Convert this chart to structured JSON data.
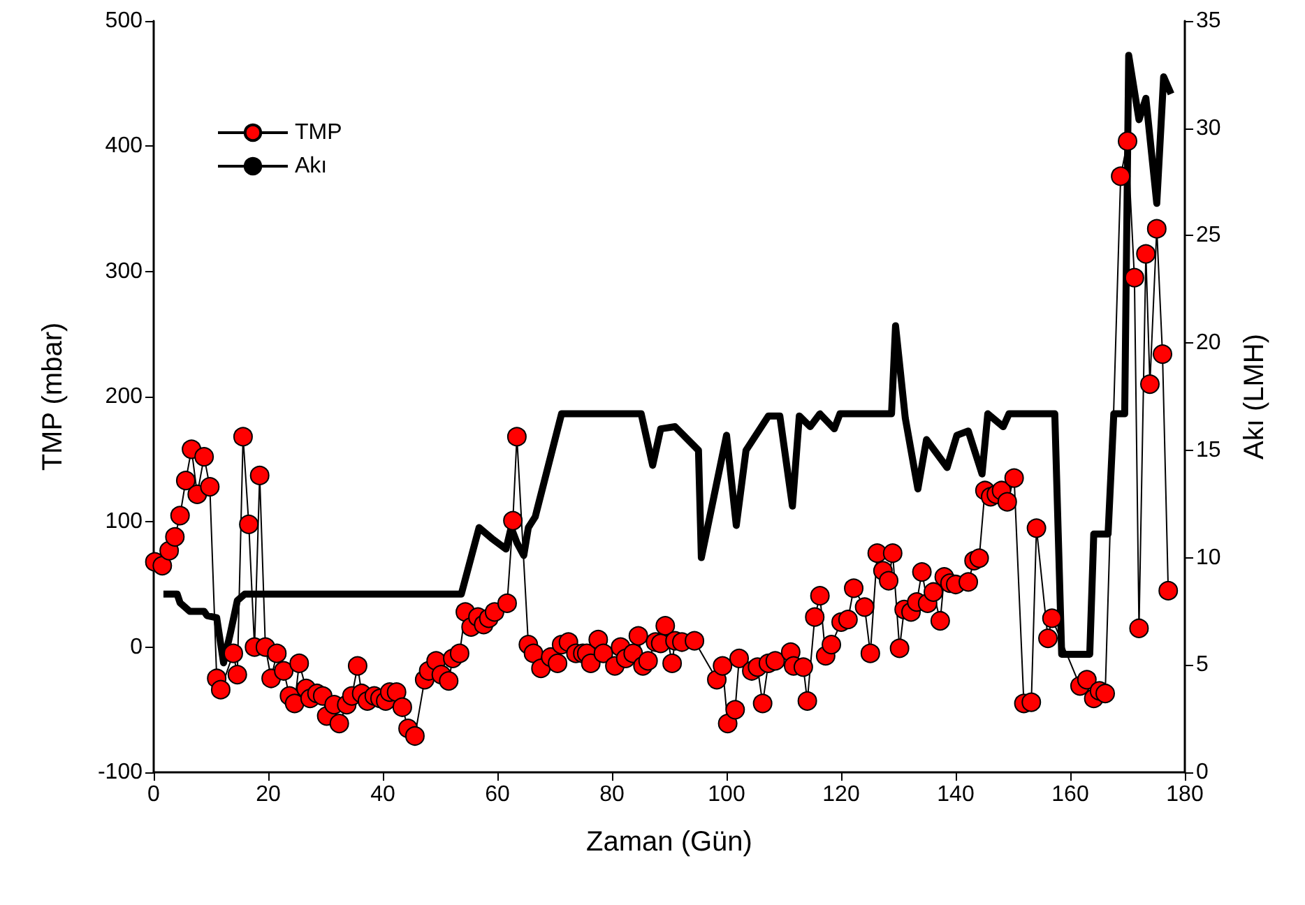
{
  "chart_data": {
    "type": "line",
    "xlabel": "Zaman (Gün)",
    "ylabel": "TMP (mbar)",
    "y2label": "Akı (LMH)",
    "xlim": [
      0,
      180
    ],
    "xticks": [
      0,
      20,
      40,
      60,
      80,
      100,
      120,
      140,
      160,
      180
    ],
    "ylim": [
      -100,
      500
    ],
    "yticks": [
      -100,
      0,
      100,
      200,
      300,
      400,
      500
    ],
    "y2lim": [
      0,
      35
    ],
    "y2ticks": [
      0,
      5,
      10,
      15,
      20,
      25,
      30,
      35
    ],
    "grid": false,
    "legend": "top left",
    "series": [
      {
        "name": "TMP",
        "color": "#ff0000",
        "marker": "circle",
        "x": [
          0.2,
          1.5,
          2.7,
          3.7,
          4.6,
          5.6,
          6.6,
          7.6,
          8.8,
          9.8,
          11.0,
          11.7,
          13.9,
          14.6,
          15.6,
          16.6,
          17.6,
          18.5,
          19.5,
          20.5,
          21.5,
          22.7,
          23.7,
          24.6,
          25.4,
          26.6,
          27.3,
          28.5,
          29.5,
          30.2,
          31.5,
          32.4,
          33.7,
          34.6,
          35.6,
          36.3,
          37.3,
          38.5,
          39.5,
          40.5,
          41.2,
          42.4,
          43.4,
          44.4,
          45.6,
          47.3,
          48.0,
          49.3,
          50.2,
          51.5,
          52.2,
          53.4,
          54.4,
          55.4,
          56.6,
          57.6,
          58.5,
          59.5,
          61.7,
          62.7,
          63.4,
          65.4,
          66.3,
          67.6,
          69.3,
          70.5,
          71.2,
          72.4,
          73.7,
          74.9,
          75.6,
          76.3,
          77.6,
          78.5,
          80.5,
          81.5,
          82.4,
          83.7,
          84.6,
          85.4,
          86.3,
          87.6,
          88.5,
          89.3,
          90.5,
          91.0,
          92.2,
          94.4,
          98.3,
          99.3,
          100.2,
          101.5,
          102.2,
          104.4,
          105.4,
          106.3,
          107.3,
          108.5,
          111.2,
          111.7,
          113.4,
          114.1,
          115.4,
          116.3,
          117.3,
          118.3,
          120.0,
          121.2,
          122.2,
          124.1,
          125.1,
          126.3,
          127.3,
          128.3,
          129.0,
          130.2,
          131.0,
          132.2,
          133.2,
          134.1,
          135.1,
          136.1,
          137.3,
          138.0,
          139.0,
          140.0,
          142.2,
          143.2,
          144.1,
          145.1,
          146.1,
          147.1,
          148.0,
          149.0,
          150.2,
          151.9,
          153.2,
          154.1,
          156.1,
          156.8,
          161.7,
          162.9,
          164.1,
          165.1,
          166.1,
          168.8,
          170.0,
          171.2,
          172.0,
          173.2,
          173.9,
          175.1,
          176.1,
          177.1
        ],
        "values": [
          68,
          65,
          77,
          88,
          105,
          133,
          158,
          122,
          152,
          128,
          -25,
          -34,
          -5,
          -22,
          168,
          98,
          0,
          137,
          0,
          -25,
          -5,
          -19,
          -39,
          -45,
          -13,
          -33,
          -41,
          -37,
          -39,
          -55,
          -46,
          -61,
          -46,
          -39,
          -15,
          -37,
          -43,
          -39,
          -41,
          -43,
          -36,
          -36,
          -48,
          -65,
          -71,
          -26,
          -19,
          -11,
          -22,
          -27,
          -9,
          -5,
          28,
          16,
          24,
          18,
          23,
          28,
          35,
          101,
          168,
          2,
          -5,
          -17,
          -8,
          -13,
          2,
          4,
          -5,
          -5,
          -5,
          -13,
          6,
          -5,
          -15,
          0,
          -9,
          -5,
          9,
          -15,
          -11,
          4,
          3,
          17,
          -13,
          5,
          4,
          5,
          -26,
          -15,
          -61,
          -50,
          -9,
          -19,
          -16,
          -45,
          -13,
          -11,
          -4,
          -15,
          -16,
          -43,
          24,
          41,
          -7,
          2,
          20,
          22,
          47,
          32,
          -5,
          75,
          61,
          53,
          75,
          -1,
          30,
          28,
          36,
          60,
          35,
          44,
          21,
          56,
          51,
          50,
          52,
          69,
          71,
          125,
          120,
          122,
          125,
          116,
          135,
          -45,
          -44,
          95,
          7,
          23,
          -31,
          -26,
          -41,
          -35,
          -37,
          376,
          404,
          295,
          15,
          314,
          210,
          334,
          234,
          45
        ]
      },
      {
        "name": "Akı",
        "color": "#000000",
        "marker": "none",
        "axis": "y2",
        "x": [
          1.7,
          4.1,
          4.6,
          6.3,
          8.8,
          9.3,
          11.0,
          12.2,
          13.4,
          14.6,
          15.9,
          53.7,
          56.8,
          59.0,
          61.5,
          62.4,
          63.4,
          64.6,
          65.4,
          66.6,
          71.2,
          85.1,
          87.1,
          88.5,
          91.0,
          95.1,
          95.6,
          100.0,
          101.7,
          103.4,
          107.3,
          109.3,
          111.5,
          112.7,
          114.6,
          116.3,
          118.8,
          119.8,
          128.8,
          129.5,
          131.2,
          133.4,
          134.9,
          138.5,
          140.2,
          142.2,
          144.6,
          145.6,
          148.3,
          149.3,
          157.3,
          158.5,
          163.4,
          164.1,
          166.6,
          167.6,
          169.5,
          170.2,
          172.0,
          173.2,
          175.1,
          176.3,
          177.6
        ],
        "values": [
          8.3,
          8.3,
          7.9,
          7.5,
          7.5,
          7.3,
          7.2,
          5.1,
          6.5,
          8.0,
          8.3,
          8.3,
          11.4,
          10.9,
          10.4,
          11.4,
          10.7,
          10.1,
          11.4,
          11.9,
          16.7,
          16.7,
          14.3,
          16.0,
          16.1,
          15.0,
          10.0,
          15.7,
          11.5,
          15.0,
          16.6,
          16.6,
          12.4,
          16.6,
          16.1,
          16.7,
          16.0,
          16.7,
          16.7,
          20.8,
          16.5,
          13.2,
          15.5,
          14.2,
          15.7,
          15.9,
          13.9,
          16.7,
          16.1,
          16.7,
          16.7,
          5.5,
          5.5,
          11.1,
          11.1,
          16.7,
          16.7,
          33.4,
          30.4,
          31.4,
          26.5,
          32.4,
          31.6
        ]
      }
    ]
  }
}
